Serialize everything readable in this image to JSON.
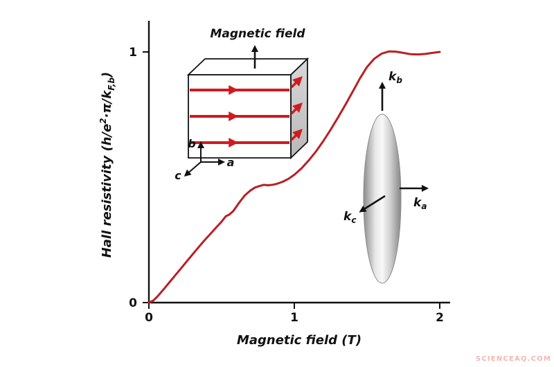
{
  "watermark": "SCIENCEAQ.COM",
  "watermark_color": "#f2b7b2",
  "chart_data": {
    "type": "line",
    "title": "",
    "xlabel": "Magnetic field (T)",
    "ylabel": "Hall resistivity (h/e²·π/k_F,b)",
    "xlim": [
      0,
      2
    ],
    "ylim": [
      0,
      1
    ],
    "x_ticks": [
      "0",
      "1",
      "2"
    ],
    "y_ticks": [
      "0",
      "1"
    ],
    "grid": false,
    "legend": false,
    "series": [
      {
        "name": "Hall resistivity",
        "color": "#b91f24",
        "points": [
          [
            0.0,
            0.0
          ],
          [
            0.03,
            0.008
          ],
          [
            0.06,
            0.025
          ],
          [
            0.1,
            0.052
          ],
          [
            0.14,
            0.08
          ],
          [
            0.18,
            0.108
          ],
          [
            0.22,
            0.136
          ],
          [
            0.26,
            0.164
          ],
          [
            0.3,
            0.192
          ],
          [
            0.34,
            0.22
          ],
          [
            0.38,
            0.247
          ],
          [
            0.42,
            0.272
          ],
          [
            0.46,
            0.298
          ],
          [
            0.5,
            0.323
          ],
          [
            0.53,
            0.345
          ],
          [
            0.55,
            0.35
          ],
          [
            0.58,
            0.365
          ],
          [
            0.62,
            0.398
          ],
          [
            0.66,
            0.428
          ],
          [
            0.7,
            0.448
          ],
          [
            0.73,
            0.459
          ],
          [
            0.76,
            0.465
          ],
          [
            0.79,
            0.47
          ],
          [
            0.82,
            0.468
          ],
          [
            0.85,
            0.47
          ],
          [
            0.88,
            0.474
          ],
          [
            0.92,
            0.482
          ],
          [
            0.96,
            0.494
          ],
          [
            1.0,
            0.51
          ],
          [
            1.05,
            0.536
          ],
          [
            1.1,
            0.568
          ],
          [
            1.15,
            0.604
          ],
          [
            1.2,
            0.645
          ],
          [
            1.25,
            0.69
          ],
          [
            1.3,
            0.738
          ],
          [
            1.35,
            0.788
          ],
          [
            1.4,
            0.84
          ],
          [
            1.45,
            0.893
          ],
          [
            1.5,
            0.94
          ],
          [
            1.55,
            0.973
          ],
          [
            1.6,
            0.993
          ],
          [
            1.65,
            1.002
          ],
          [
            1.7,
            1.001
          ],
          [
            1.75,
            0.996
          ],
          [
            1.8,
            0.991
          ],
          [
            1.85,
            0.99
          ],
          [
            1.9,
            0.992
          ],
          [
            1.95,
            0.996
          ],
          [
            2.0,
            1.0
          ]
        ]
      }
    ]
  },
  "axis_labels": {
    "x": "Magnetic field (T)",
    "y_prefix": "Hall resistivity (h/e",
    "y_sup": "2",
    "y_mid": "·π/k",
    "y_sub": "F,b",
    "y_suffix": ")"
  },
  "cube_inset": {
    "title": "Magnetic field",
    "axis_b": "b",
    "axis_a": "a",
    "axis_c": "c",
    "arrow_color": "#cf1b20"
  },
  "fermi_inset": {
    "kb_base": "k",
    "kb_sub": "b",
    "ka_base": "k",
    "ka_sub": "a",
    "kc_base": "k",
    "kc_sub": "c"
  }
}
